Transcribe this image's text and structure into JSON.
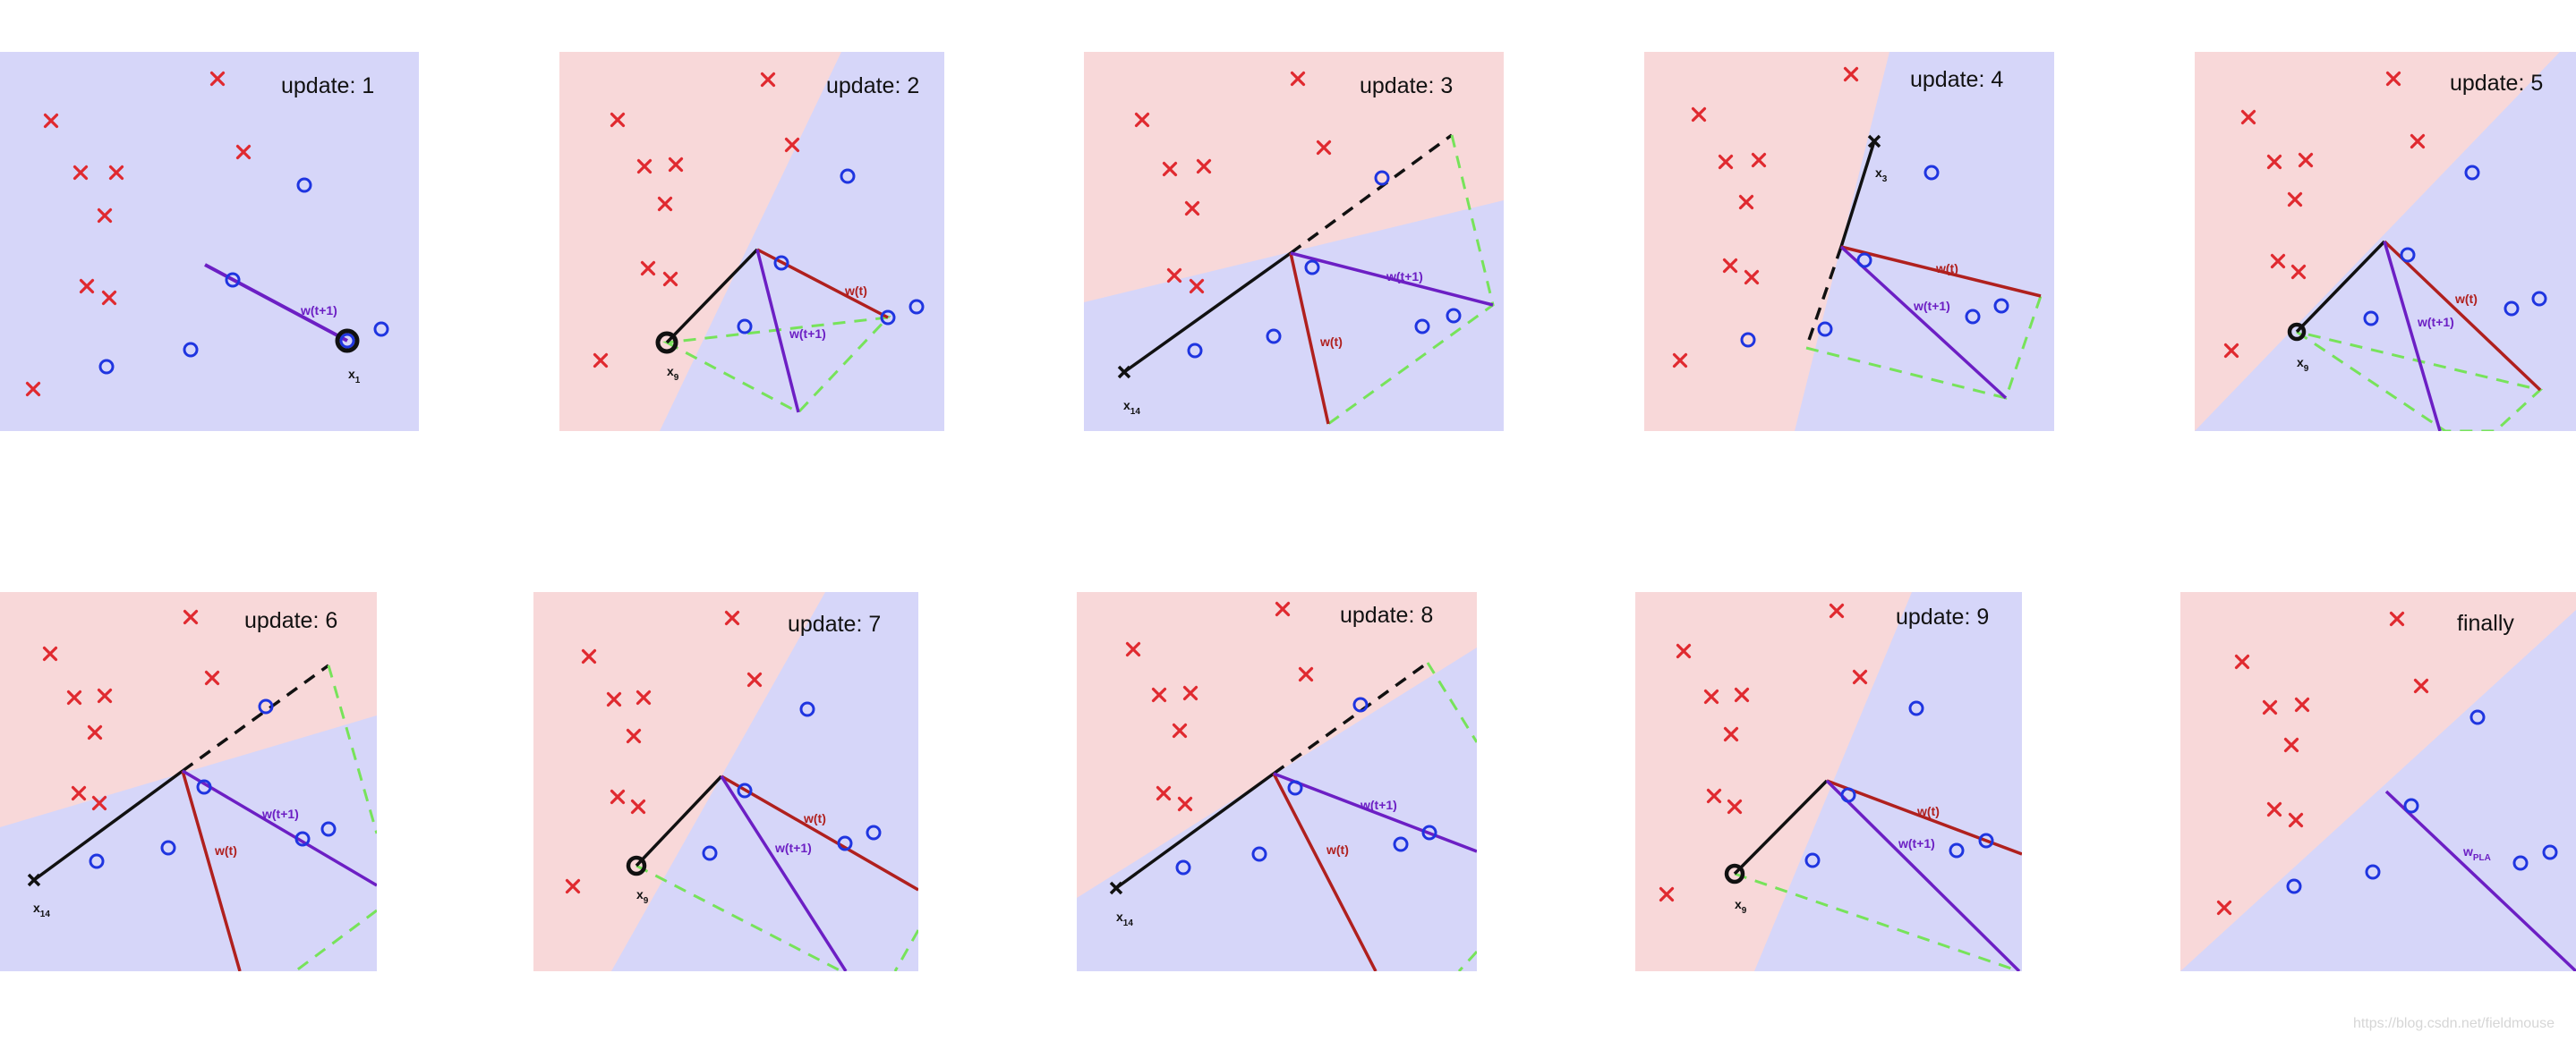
{
  "colors": {
    "red_region": "#f8d8d9",
    "blue_region": "#d6d6f9",
    "cross": "#e0292f",
    "circle": "#1f35e0",
    "w_t": "#b0201e",
    "w_t1": "#6c1fc4",
    "w_pla": "#6c1fc4",
    "x_vec": "#111111",
    "sum_dash": "#77e35a"
  },
  "panels": [
    {
      "title": "update: 1",
      "w_t1_label": "w(t+1)",
      "x_label": "x",
      "x_sub": "1",
      "crosses": [
        [
          57,
          135
        ],
        [
          90,
          193
        ],
        [
          130,
          193
        ],
        [
          117,
          241
        ],
        [
          97,
          320
        ],
        [
          122,
          333
        ],
        [
          37,
          435
        ],
        [
          243,
          88
        ],
        [
          272,
          170
        ]
      ],
      "circles": [
        [
          340,
          207
        ],
        [
          260,
          313
        ],
        [
          213,
          391
        ],
        [
          119,
          410
        ],
        [
          426,
          368
        ],
        [
          388,
          381
        ]
      ]
    },
    {
      "title": "update: 2",
      "w_t_label": "w(t)",
      "w_t1_label": "w(t+1)",
      "x_label": "x",
      "x_sub": "9",
      "crosses": [
        [
          690,
          134
        ],
        [
          720,
          186
        ],
        [
          755,
          184
        ],
        [
          743,
          228
        ],
        [
          724,
          300
        ],
        [
          749,
          312
        ],
        [
          671,
          403
        ],
        [
          858,
          89
        ],
        [
          885,
          162
        ]
      ],
      "circles": [
        [
          947,
          197
        ],
        [
          873,
          294
        ],
        [
          1024,
          343
        ],
        [
          992,
          355
        ],
        [
          832,
          365
        ]
      ]
    },
    {
      "title": "update: 3",
      "w_t_label": "w(t)",
      "w_t1_label": "w(t+1)",
      "x_label": "x",
      "x_sub": "14",
      "crosses": [
        [
          1276,
          134
        ],
        [
          1307,
          189
        ],
        [
          1345,
          186
        ],
        [
          1332,
          233
        ],
        [
          1312,
          308
        ],
        [
          1337,
          320
        ],
        [
          1450,
          88
        ],
        [
          1479,
          165
        ]
      ],
      "circles": [
        [
          1544,
          199
        ],
        [
          1466,
          299
        ],
        [
          1624,
          353
        ],
        [
          1589,
          365
        ],
        [
          1423,
          376
        ],
        [
          1335,
          392
        ]
      ]
    },
    {
      "title": "update: 4",
      "w_t_label": "w(t)",
      "w_t1_label": "w(t+1)",
      "x_label": "x",
      "x_sub": "3",
      "crosses": [
        [
          1898,
          128
        ],
        [
          1928,
          181
        ],
        [
          1965,
          179
        ],
        [
          1951,
          226
        ],
        [
          1933,
          297
        ],
        [
          1957,
          310
        ],
        [
          1877,
          403
        ],
        [
          2068,
          83
        ]
      ],
      "circles": [
        [
          2158,
          193
        ],
        [
          2083,
          291
        ],
        [
          2236,
          342
        ],
        [
          2204,
          354
        ],
        [
          2039,
          368
        ],
        [
          1953,
          380
        ]
      ]
    },
    {
      "title": "update: 5",
      "w_t_label": "w(t)",
      "w_t1_label": "w(t+1)",
      "x_label": "x",
      "x_sub": "9",
      "crosses": [
        [
          2512,
          131
        ],
        [
          2541,
          181
        ],
        [
          2576,
          179
        ],
        [
          2564,
          223
        ],
        [
          2545,
          292
        ],
        [
          2568,
          304
        ],
        [
          2493,
          392
        ],
        [
          2674,
          88
        ],
        [
          2701,
          158
        ]
      ],
      "circles": [
        [
          2762,
          193
        ],
        [
          2690,
          285
        ],
        [
          2837,
          334
        ],
        [
          2806,
          345
        ],
        [
          2649,
          356
        ]
      ]
    },
    {
      "title": "update: 6",
      "w_t_label": "w(t)",
      "w_t1_label": "w(t+1)",
      "x_label": "x",
      "x_sub": "14",
      "crosses": [
        [
          56,
          731
        ],
        [
          83,
          780
        ],
        [
          117,
          778
        ],
        [
          106,
          819
        ],
        [
          88,
          887
        ],
        [
          111,
          898
        ],
        [
          213,
          690
        ],
        [
          237,
          758
        ]
      ],
      "circles": [
        [
          297,
          790
        ],
        [
          228,
          880
        ],
        [
          367,
          927
        ],
        [
          338,
          938
        ],
        [
          188,
          948
        ],
        [
          108,
          963
        ]
      ]
    },
    {
      "title": "update: 7",
      "w_t_label": "w(t)",
      "w_t1_label": "w(t+1)",
      "x_label": "x",
      "x_sub": "9",
      "crosses": [
        [
          658,
          734
        ],
        [
          686,
          782
        ],
        [
          719,
          780
        ],
        [
          708,
          823
        ],
        [
          690,
          891
        ],
        [
          713,
          902
        ],
        [
          640,
          991
        ],
        [
          818,
          691
        ],
        [
          843,
          760
        ]
      ],
      "circles": [
        [
          902,
          793
        ],
        [
          832,
          884
        ],
        [
          976,
          931
        ],
        [
          944,
          943
        ],
        [
          793,
          954
        ]
      ]
    },
    {
      "title": "update: 8",
      "w_t_label": "w(t)",
      "w_t1_label": "w(t+1)",
      "x_label": "x",
      "x_sub": "14",
      "crosses": [
        [
          1266,
          726
        ],
        [
          1295,
          777
        ],
        [
          1330,
          775
        ],
        [
          1318,
          817
        ],
        [
          1300,
          887
        ],
        [
          1324,
          899
        ],
        [
          1433,
          681
        ],
        [
          1459,
          754
        ]
      ],
      "circles": [
        [
          1520,
          788
        ],
        [
          1447,
          881
        ],
        [
          1597,
          931
        ],
        [
          1565,
          944
        ],
        [
          1407,
          955
        ],
        [
          1322,
          970
        ]
      ]
    },
    {
      "title": "update: 9",
      "w_t_label": "w(t)",
      "w_t1_label": "w(t+1)",
      "x_label": "x",
      "x_sub": "9",
      "crosses": [
        [
          1881,
          728
        ],
        [
          1912,
          779
        ],
        [
          1946,
          777
        ],
        [
          1934,
          821
        ],
        [
          1915,
          890
        ],
        [
          1938,
          902
        ],
        [
          1862,
          1000
        ],
        [
          2052,
          683
        ],
        [
          2078,
          757
        ]
      ],
      "circles": [
        [
          2141,
          792
        ],
        [
          2065,
          889
        ],
        [
          2219,
          940
        ],
        [
          2186,
          951
        ],
        [
          2025,
          962
        ]
      ]
    },
    {
      "title": "finally",
      "w_pla_label": "w",
      "w_pla_sub": "PLA",
      "crosses": [
        [
          2505,
          740
        ],
        [
          2536,
          791
        ],
        [
          2572,
          788
        ],
        [
          2560,
          833
        ],
        [
          2541,
          905
        ],
        [
          2565,
          917
        ],
        [
          2485,
          1015
        ],
        [
          2678,
          692
        ],
        [
          2705,
          767
        ]
      ],
      "circles": [
        [
          2768,
          802
        ],
        [
          2694,
          901
        ],
        [
          2849,
          953
        ],
        [
          2816,
          965
        ],
        [
          2651,
          975
        ],
        [
          2563,
          991
        ]
      ]
    }
  ],
  "watermark": "https://blog.csdn.net/fieldmouse"
}
